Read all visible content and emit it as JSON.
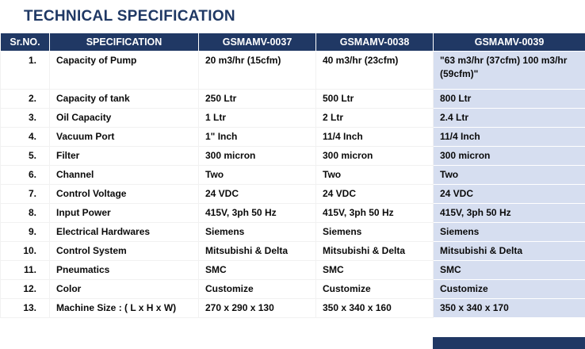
{
  "page_title": "TECHNICAL SPECIFICATION",
  "colors": {
    "title_text": "#1f3864",
    "header_bg": "#203864",
    "header_text": "#ffffff",
    "model_0039_column_bg": "#d6def0",
    "footer_accent": "#203864"
  },
  "table": {
    "headers": [
      "Sr.NO.",
      "SPECIFICATION",
      "GSMAMV-0037",
      "GSMAMV-0038",
      "GSMAMV-0039"
    ],
    "rows": [
      [
        "1.",
        "Capacity of Pump",
        "20 m3/hr (15cfm)",
        "40 m3/hr (23cfm)",
        "\"63 m3/hr (37cfm) 100 m3/hr (59cfm)\""
      ],
      [
        "2.",
        "Capacity of tank",
        "250 Ltr",
        "500 Ltr",
        "800 Ltr"
      ],
      [
        "3.",
        "Oil Capacity",
        "1 Ltr",
        "2 Ltr",
        "2.4 Ltr"
      ],
      [
        "4.",
        "Vacuum Port",
        "1\" Inch",
        "11/4 Inch",
        "11/4 Inch"
      ],
      [
        "5.",
        "Filter",
        "300 micron",
        "300 micron",
        "300 micron"
      ],
      [
        "6.",
        "Channel",
        "Two",
        "Two",
        "Two"
      ],
      [
        "7.",
        "Control Voltage",
        "24 VDC",
        "24 VDC",
        "24 VDC"
      ],
      [
        "8.",
        "Input Power",
        "415V, 3ph 50 Hz",
        "415V, 3ph 50 Hz",
        "415V, 3ph 50 Hz"
      ],
      [
        "9.",
        "Electrical Hardwares",
        "Siemens",
        "Siemens",
        "Siemens"
      ],
      [
        "10.",
        "Control System",
        "Mitsubishi & Delta",
        "Mitsubishi & Delta",
        "Mitsubishi & Delta"
      ],
      [
        "11.",
        "Pneumatics",
        "SMC",
        "SMC",
        "SMC"
      ],
      [
        "12.",
        "Color",
        "Customize",
        "Customize",
        "Customize"
      ],
      [
        "13.",
        "Machine Size : ( L x H x W)",
        "270 x 290 x 130",
        "350 x 340 x 160",
        "350 x 340 x 170"
      ]
    ]
  }
}
